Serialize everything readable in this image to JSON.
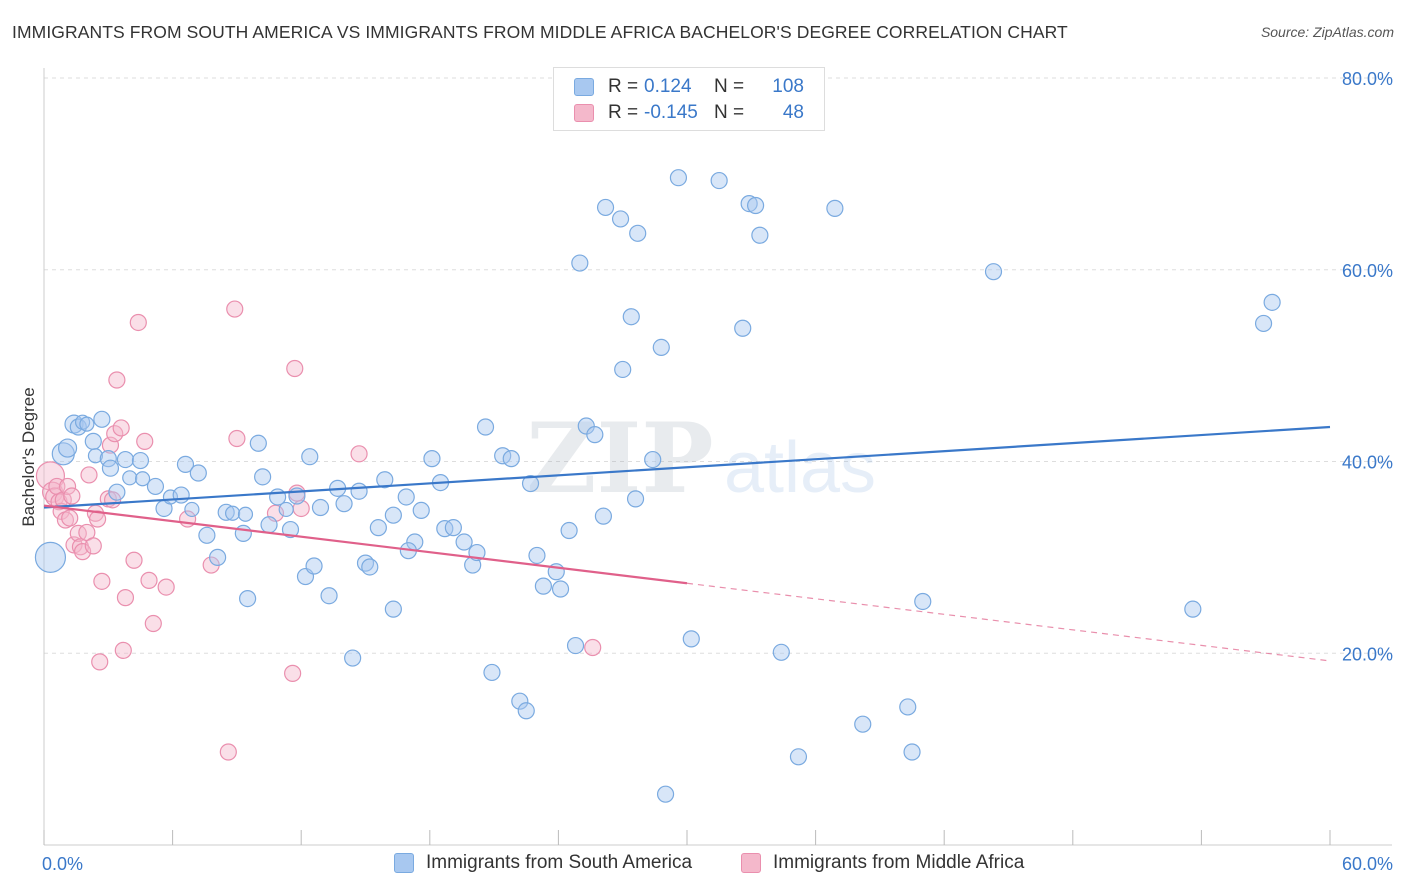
{
  "title": "IMMIGRANTS FROM SOUTH AMERICA VS IMMIGRANTS FROM MIDDLE AFRICA BACHELOR'S DEGREE CORRELATION CHART",
  "source": "Source: ZipAtlas.com",
  "watermark": {
    "zip": "ZIP",
    "atlas": "atlas"
  },
  "legend": {
    "rows": [
      {
        "r_label": "R =",
        "r_value": "0.124",
        "n_label": "N =",
        "n_value": "108"
      },
      {
        "r_label": "R =",
        "r_value": "-0.145",
        "n_label": "N =",
        "n_value": "48"
      }
    ]
  },
  "bottom_legend": {
    "series1": "Immigrants from South America",
    "series2": "Immigrants from Middle Africa"
  },
  "colors": {
    "blue_fill": "#a8c8f0",
    "blue_stroke": "#7aaae0",
    "blue_line": "#3a78c9",
    "pink_fill": "#f4b8cb",
    "pink_stroke": "#ea8fae",
    "pink_line": "#e0608a",
    "axis_text": "#3a78c9",
    "grid": "#dddddd"
  },
  "chart_data": {
    "type": "scatter",
    "title": "IMMIGRANTS FROM SOUTH AMERICA VS IMMIGRANTS FROM MIDDLE AFRICA BACHELOR'S DEGREE CORRELATION CHART",
    "xlabel": "",
    "ylabel": "Bachelor's Degree",
    "xlim": [
      0,
      60
    ],
    "ylim": [
      0,
      80
    ],
    "x_tick_labels": [
      "0.0%",
      "60.0%"
    ],
    "y_ticks": [
      20,
      40,
      60,
      80
    ],
    "y_tick_labels": [
      "20.0%",
      "40.0%",
      "60.0%",
      "80.0%"
    ],
    "series": [
      {
        "name": "Immigrants from South America",
        "color": "blue",
        "R": 0.124,
        "N": 108,
        "trend": {
          "x0": 0,
          "y0": 35.2,
          "x1": 60,
          "y1": 43.6,
          "dash_from": null
        },
        "points": [
          [
            0.3,
            30.0,
            15
          ],
          [
            0.9,
            40.8,
            11
          ],
          [
            1.1,
            41.4,
            9
          ],
          [
            1.4,
            43.9,
            9
          ],
          [
            1.6,
            43.6,
            8
          ],
          [
            1.8,
            44.1,
            7
          ],
          [
            2.0,
            43.9,
            7
          ],
          [
            2.3,
            42.1,
            8
          ],
          [
            2.4,
            40.6,
            7
          ],
          [
            2.7,
            44.4,
            8
          ],
          [
            3.0,
            40.3,
            8
          ],
          [
            3.1,
            39.3,
            8
          ],
          [
            3.4,
            36.8,
            8
          ],
          [
            3.8,
            40.2,
            8
          ],
          [
            4.0,
            38.3,
            7
          ],
          [
            4.5,
            40.1,
            8
          ],
          [
            4.6,
            38.2,
            7
          ],
          [
            5.6,
            35.1,
            8
          ],
          [
            5.9,
            36.3,
            7
          ],
          [
            6.4,
            36.5,
            8
          ],
          [
            6.6,
            39.7,
            8
          ],
          [
            6.9,
            35.0,
            7
          ],
          [
            7.2,
            38.8,
            8
          ],
          [
            7.6,
            32.3,
            8
          ],
          [
            8.1,
            30.0,
            8
          ],
          [
            8.5,
            34.7,
            8
          ],
          [
            8.8,
            34.6,
            7
          ],
          [
            9.3,
            32.5,
            8
          ],
          [
            9.4,
            34.5,
            7
          ],
          [
            9.5,
            25.7,
            8
          ],
          [
            10.0,
            41.9,
            8
          ],
          [
            10.2,
            38.4,
            8
          ],
          [
            10.5,
            33.4,
            8
          ],
          [
            10.9,
            36.3,
            8
          ],
          [
            11.3,
            35.0,
            7
          ],
          [
            11.5,
            32.9,
            8
          ],
          [
            11.8,
            36.4,
            8
          ],
          [
            12.2,
            28.0,
            8
          ],
          [
            12.4,
            40.5,
            8
          ],
          [
            12.6,
            29.1,
            8
          ],
          [
            12.9,
            35.2,
            8
          ],
          [
            13.3,
            26.0,
            8
          ],
          [
            13.7,
            37.2,
            8
          ],
          [
            14.0,
            35.6,
            8
          ],
          [
            14.4,
            19.5,
            8
          ],
          [
            14.7,
            36.9,
            8
          ],
          [
            15.0,
            29.4,
            8
          ],
          [
            15.2,
            29.0,
            8
          ],
          [
            15.6,
            33.1,
            8
          ],
          [
            15.9,
            38.1,
            8
          ],
          [
            16.3,
            24.6,
            8
          ],
          [
            16.9,
            36.3,
            8
          ],
          [
            17.3,
            31.6,
            8
          ],
          [
            17.0,
            30.7,
            8
          ],
          [
            17.6,
            34.9,
            8
          ],
          [
            18.1,
            40.3,
            8
          ],
          [
            18.5,
            37.8,
            8
          ],
          [
            18.7,
            33.0,
            8
          ],
          [
            19.1,
            33.1,
            8
          ],
          [
            19.6,
            31.6,
            8
          ],
          [
            20.0,
            29.2,
            8
          ],
          [
            20.2,
            30.5,
            8
          ],
          [
            20.6,
            43.6,
            8
          ],
          [
            20.9,
            18.0,
            8
          ],
          [
            21.4,
            40.6,
            8
          ],
          [
            21.8,
            40.3,
            8
          ],
          [
            22.2,
            15.0,
            8
          ],
          [
            22.5,
            14.0,
            8
          ],
          [
            22.7,
            37.7,
            8
          ],
          [
            23.0,
            30.2,
            8
          ],
          [
            23.3,
            27.0,
            8
          ],
          [
            23.9,
            28.5,
            8
          ],
          [
            24.1,
            26.7,
            8
          ],
          [
            24.5,
            32.8,
            8
          ],
          [
            24.8,
            20.8,
            8
          ],
          [
            25.3,
            43.7,
            8
          ],
          [
            25.7,
            42.8,
            8
          ],
          [
            26.1,
            34.3,
            8
          ],
          [
            25.0,
            60.7,
            8
          ],
          [
            26.2,
            66.5,
            8
          ],
          [
            27.0,
            49.6,
            8
          ],
          [
            27.4,
            55.1,
            8
          ],
          [
            27.7,
            63.8,
            8
          ],
          [
            26.9,
            65.3,
            8
          ],
          [
            28.4,
            40.2,
            8
          ],
          [
            28.8,
            51.9,
            8
          ],
          [
            29.6,
            69.6,
            8
          ],
          [
            29.0,
            5.3,
            8
          ],
          [
            30.2,
            21.5,
            8
          ],
          [
            31.5,
            69.3,
            8
          ],
          [
            32.6,
            53.9,
            8
          ],
          [
            32.9,
            66.9,
            8
          ],
          [
            33.2,
            66.7,
            8
          ],
          [
            34.4,
            20.1,
            8
          ],
          [
            33.4,
            63.6,
            8
          ],
          [
            35.2,
            9.2,
            8
          ],
          [
            36.9,
            66.4,
            8
          ],
          [
            38.2,
            12.6,
            8
          ],
          [
            40.3,
            14.4,
            8
          ],
          [
            40.5,
            9.7,
            8
          ],
          [
            41.0,
            25.4,
            8
          ],
          [
            44.3,
            59.8,
            8
          ],
          [
            53.6,
            24.6,
            8
          ],
          [
            56.9,
            54.4,
            8
          ],
          [
            57.3,
            56.6,
            8
          ],
          [
            27.6,
            36.1,
            8
          ],
          [
            16.3,
            34.4,
            8
          ],
          [
            5.2,
            37.4,
            8
          ]
        ]
      },
      {
        "name": "Immigrants from Middle Africa",
        "color": "pink",
        "R": -0.145,
        "N": 48,
        "trend": {
          "x0": 0,
          "y0": 35.4,
          "x1": 60,
          "y1": 19.2,
          "dash_from": 30
        },
        "points": [
          [
            0.3,
            38.5,
            14
          ],
          [
            0.4,
            36.8,
            10
          ],
          [
            0.5,
            36.3,
            9
          ],
          [
            0.6,
            37.4,
            8
          ],
          [
            0.7,
            35.8,
            8
          ],
          [
            0.8,
            34.8,
            8
          ],
          [
            0.9,
            36.0,
            8
          ],
          [
            1.0,
            33.9,
            8
          ],
          [
            1.1,
            37.4,
            8
          ],
          [
            1.2,
            34.1,
            8
          ],
          [
            1.3,
            36.4,
            8
          ],
          [
            1.4,
            31.3,
            8
          ],
          [
            1.6,
            32.5,
            8
          ],
          [
            1.7,
            31.1,
            8
          ],
          [
            1.8,
            30.6,
            8
          ],
          [
            2.0,
            32.6,
            8
          ],
          [
            2.1,
            38.6,
            8
          ],
          [
            2.3,
            31.2,
            8
          ],
          [
            2.4,
            34.6,
            8
          ],
          [
            2.5,
            34.0,
            8
          ],
          [
            2.6,
            19.1,
            8
          ],
          [
            2.7,
            27.5,
            8
          ],
          [
            3.0,
            36.1,
            8
          ],
          [
            3.1,
            41.7,
            8
          ],
          [
            3.3,
            42.9,
            8
          ],
          [
            3.4,
            48.5,
            8
          ],
          [
            3.6,
            43.5,
            8
          ],
          [
            3.8,
            25.8,
            8
          ],
          [
            3.7,
            20.3,
            8
          ],
          [
            4.2,
            29.7,
            8
          ],
          [
            4.4,
            54.5,
            8
          ],
          [
            4.7,
            42.1,
            8
          ],
          [
            4.9,
            27.6,
            8
          ],
          [
            5.1,
            23.1,
            8
          ],
          [
            5.7,
            26.9,
            8
          ],
          [
            6.7,
            34.0,
            8
          ],
          [
            7.8,
            29.2,
            8
          ],
          [
            8.6,
            9.7,
            8
          ],
          [
            9.0,
            42.4,
            8
          ],
          [
            8.9,
            55.9,
            8
          ],
          [
            10.8,
            34.6,
            8
          ],
          [
            11.6,
            17.9,
            8
          ],
          [
            11.7,
            49.7,
            8
          ],
          [
            11.8,
            36.7,
            8
          ],
          [
            12.0,
            35.1,
            8
          ],
          [
            14.7,
            40.8,
            8
          ],
          [
            25.6,
            20.6,
            8
          ],
          [
            3.2,
            36.0,
            8
          ]
        ]
      }
    ]
  }
}
